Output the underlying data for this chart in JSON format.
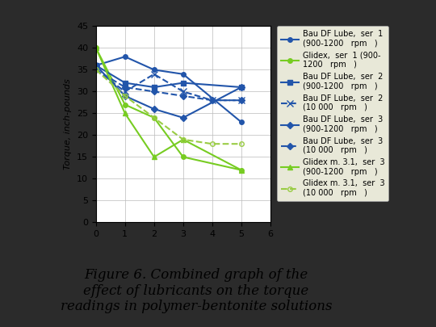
{
  "title": "Figure 6. Combined graph of the\neffect of lubricants on the torque\nreadings in polymer-bentonite solutions",
  "ylabel": "Torque, inch-pounds",
  "xlabel": "",
  "xlim": [
    0,
    6
  ],
  "ylim": [
    0,
    45
  ],
  "xticks": [
    0,
    1,
    2,
    3,
    4,
    5,
    6
  ],
  "yticks": [
    0,
    5,
    10,
    15,
    20,
    25,
    30,
    35,
    40,
    45
  ],
  "series": [
    {
      "label": "Bau DF Lube,  ser  1\n(900-1200   rpm   )",
      "x": [
        0,
        1,
        2,
        3,
        5
      ],
      "y": [
        36,
        38,
        35,
        34,
        23
      ],
      "color": "#2255aa",
      "linestyle": "-",
      "marker": "o",
      "markersize": 4,
      "linewidth": 1.5,
      "markerfacecolor": "#2255aa"
    },
    {
      "label": "Glidex,  ser  1 (900-\n1200   rpm   )",
      "x": [
        0,
        1,
        2,
        3,
        5
      ],
      "y": [
        40,
        27,
        24,
        15,
        12
      ],
      "color": "#77cc22",
      "linestyle": "-",
      "marker": "o",
      "markersize": 4,
      "linewidth": 1.5,
      "markerfacecolor": "#77cc22"
    },
    {
      "label": "Bau DF Lube,  ser  2\n(900-1200   rpm   )",
      "x": [
        0,
        1,
        2,
        3,
        5
      ],
      "y": [
        36,
        32,
        31,
        32,
        31
      ],
      "color": "#2255aa",
      "linestyle": "-",
      "marker": "s",
      "markersize": 4,
      "linewidth": 1.5,
      "markerfacecolor": "#2255aa"
    },
    {
      "label": "Bau DF Lube,  ser  2\n(10 000   rpm   )",
      "x": [
        0,
        1,
        2,
        3,
        4,
        5
      ],
      "y": [
        35,
        30,
        34,
        30,
        28,
        28
      ],
      "color": "#2255aa",
      "linestyle": "--",
      "marker": "x",
      "markersize": 6,
      "linewidth": 1.5,
      "markerfacecolor": "#2255aa"
    },
    {
      "label": "Bau DF Lube,  ser  3\n(900-1200   rpm   )",
      "x": [
        0,
        1,
        2,
        3,
        5
      ],
      "y": [
        36,
        29,
        26,
        24,
        31
      ],
      "color": "#2255aa",
      "linestyle": "-",
      "marker": "D",
      "markersize": 4,
      "linewidth": 1.5,
      "markerfacecolor": "#2255aa"
    },
    {
      "label": "Bau DF Lube,  ser  3\n(10 000   rpm   )",
      "x": [
        0,
        1,
        2,
        3,
        4,
        5
      ],
      "y": [
        35,
        31,
        30,
        29,
        28,
        28
      ],
      "color": "#2255aa",
      "linestyle": "--",
      "marker": "D",
      "markersize": 4,
      "linewidth": 1.5,
      "markerfacecolor": "#2255aa"
    },
    {
      "label": "Glidex m. 3.1,  ser  3\n(900-1200   rpm   )",
      "x": [
        0,
        1,
        2,
        3,
        5
      ],
      "y": [
        40,
        25,
        15,
        19,
        12
      ],
      "color": "#77cc22",
      "linestyle": "-",
      "marker": "^",
      "markersize": 5,
      "linewidth": 1.5,
      "markerfacecolor": "#77cc22"
    },
    {
      "label": "Glidex m. 3.1,  ser  3\n(10 000   rpm   )",
      "x": [
        0,
        1,
        2,
        3,
        4,
        5
      ],
      "y": [
        35,
        29,
        24,
        19,
        18,
        18
      ],
      "color": "#99cc44",
      "linestyle": "--",
      "marker": "o",
      "markersize": 4,
      "linewidth": 1.5,
      "markerfacecolor": "none"
    }
  ],
  "slide_bg": "#2b2b2b",
  "chart_bg": "#ffffff",
  "legend_bg": "#e8e8d8",
  "grid_color": "#bbbbbb",
  "title_fontsize": 12,
  "axis_fontsize": 8,
  "tick_fontsize": 8,
  "legend_fontsize": 7
}
